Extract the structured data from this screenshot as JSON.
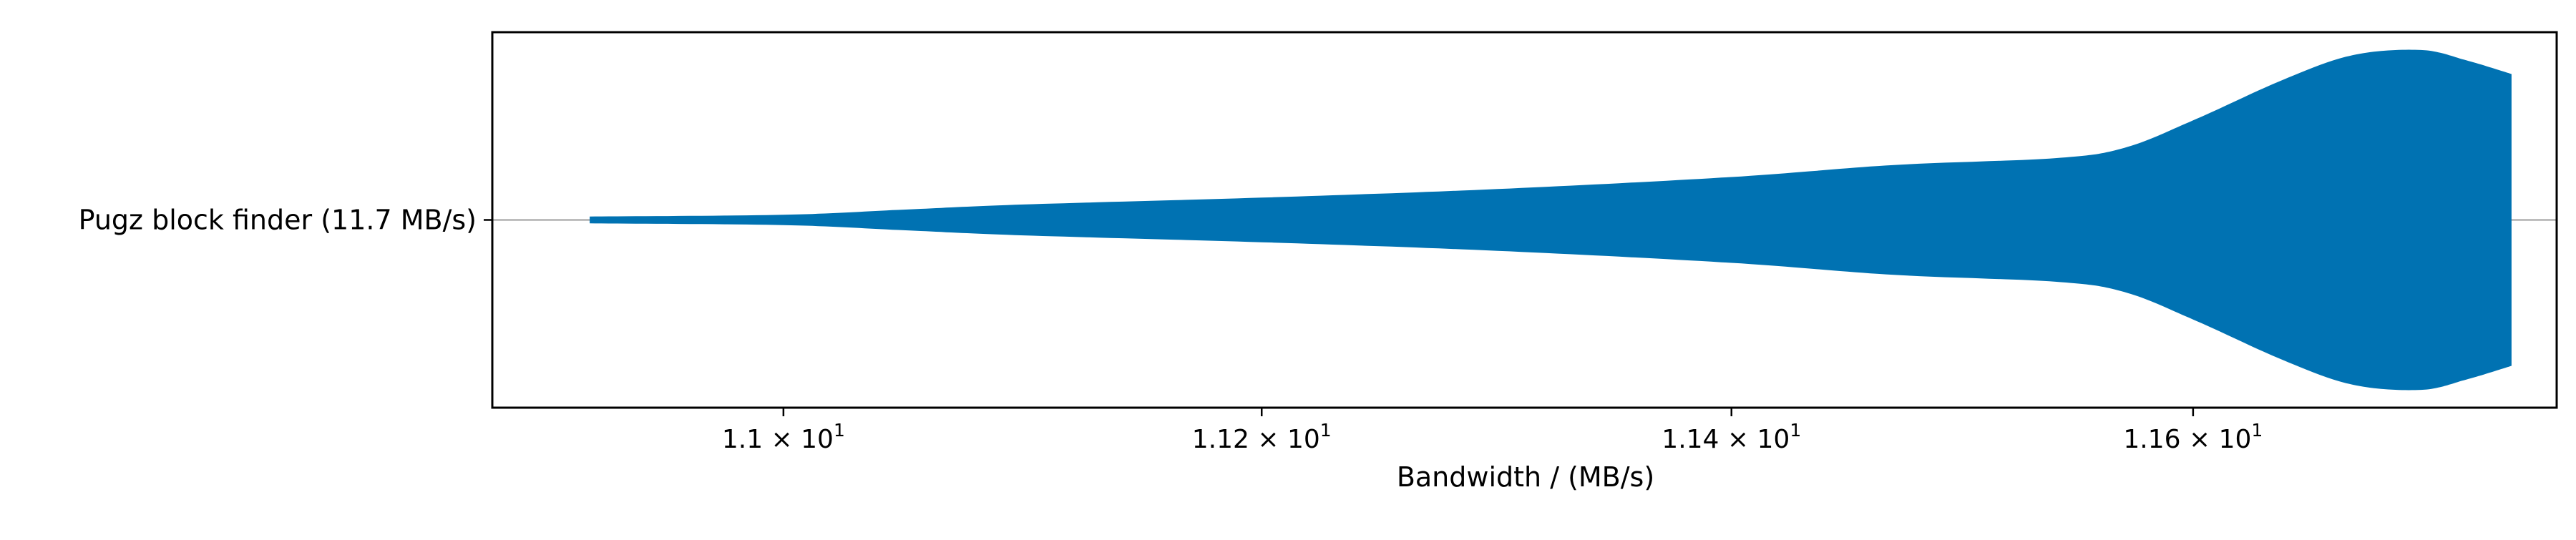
{
  "chart_data": {
    "type": "violin",
    "orientation": "horizontal",
    "xscale": "log",
    "xlabel": "Bandwidth / (MB/s)",
    "categories": [
      "Pugz block finder (11.7 MB/s)"
    ],
    "xlim": [
      10.88,
      11.76
    ],
    "x_ticks": [
      {
        "value": 11.0,
        "mantissa": "1.1",
        "base": "10",
        "exp": "1"
      },
      {
        "value": 11.2,
        "mantissa": "1.12",
        "base": "10",
        "exp": "1"
      },
      {
        "value": 11.4,
        "mantissa": "1.14",
        "base": "10",
        "exp": "1"
      },
      {
        "value": 11.6,
        "mantissa": "1.16",
        "base": "10",
        "exp": "1"
      }
    ],
    "grid": {
      "horizontal": true,
      "vertical": false
    },
    "series": [
      {
        "category": "Pugz block finder (11.7 MB/s)",
        "color": "#0072b2",
        "density_profile": [
          {
            "x": 10.92,
            "density": 0.02
          },
          {
            "x": 11.0,
            "density": 0.03
          },
          {
            "x": 11.05,
            "density": 0.06
          },
          {
            "x": 11.1,
            "density": 0.09
          },
          {
            "x": 11.2,
            "density": 0.13
          },
          {
            "x": 11.3,
            "density": 0.18
          },
          {
            "x": 11.4,
            "density": 0.25
          },
          {
            "x": 11.47,
            "density": 0.32
          },
          {
            "x": 11.54,
            "density": 0.36
          },
          {
            "x": 11.57,
            "density": 0.42
          },
          {
            "x": 11.6,
            "density": 0.58
          },
          {
            "x": 11.64,
            "density": 0.82
          },
          {
            "x": 11.67,
            "density": 0.96
          },
          {
            "x": 11.7,
            "density": 0.99
          },
          {
            "x": 11.72,
            "density": 0.93
          },
          {
            "x": 11.74,
            "density": 0.85
          }
        ]
      }
    ]
  }
}
